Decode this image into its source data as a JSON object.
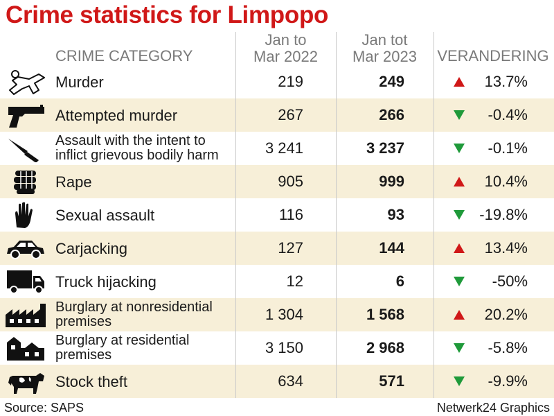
{
  "title": "Crime statistics for Limpopo",
  "chart_data": {
    "type": "table",
    "columns": {
      "category": "CRIME CATEGORY",
      "period1": [
        "Jan to",
        "Mar 2022"
      ],
      "period2": [
        "Jan tot",
        "Mar 2023"
      ],
      "change": "VERANDERING"
    },
    "rows": [
      {
        "icon": "body-outline-icon",
        "category": [
          "Murder"
        ],
        "v2022": "219",
        "v2023": "249",
        "change": "13.7%",
        "direction": "up"
      },
      {
        "icon": "pistol-icon",
        "category": [
          "Attempted murder"
        ],
        "v2022": "267",
        "v2023": "266",
        "change": "-0.4%",
        "direction": "down"
      },
      {
        "icon": "knife-icon",
        "category": [
          "Assault with the intent to",
          "inflict grievous bodily harm"
        ],
        "v2022": "3 241",
        "v2023": "3 237",
        "change": "-0.1%",
        "direction": "down"
      },
      {
        "icon": "fist-icon",
        "category": [
          "Rape"
        ],
        "v2022": "905",
        "v2023": "999",
        "change": "10.4%",
        "direction": "up"
      },
      {
        "icon": "hand-icon",
        "category": [
          "Sexual assault"
        ],
        "v2022": "116",
        "v2023": "93",
        "change": "-19.8%",
        "direction": "down"
      },
      {
        "icon": "car-icon",
        "category": [
          "Carjacking"
        ],
        "v2022": "127",
        "v2023": "144",
        "change": "13.4%",
        "direction": "up"
      },
      {
        "icon": "truck-icon",
        "category": [
          "Truck hijacking"
        ],
        "v2022": "12",
        "v2023": "6",
        "change": "-50%",
        "direction": "down"
      },
      {
        "icon": "factory-icon",
        "category": [
          "Burglary at nonresidential",
          "premises"
        ],
        "v2022": "1 304",
        "v2023": "1 568",
        "change": "20.2%",
        "direction": "up"
      },
      {
        "icon": "houses-icon",
        "category": [
          "Burglary at residential",
          "premises"
        ],
        "v2022": "3 150",
        "v2023": "2 968",
        "change": "-5.8%",
        "direction": "down"
      },
      {
        "icon": "cow-icon",
        "category": [
          "Stock theft"
        ],
        "v2022": "634",
        "v2023": "571",
        "change": "-9.9%",
        "direction": "down"
      }
    ]
  },
  "colors": {
    "title": "#d01818",
    "up": "#d01818",
    "down": "#1f9a3a",
    "shade": "#f7efd8"
  },
  "footer": {
    "source": "Source: SAPS",
    "credit": "Netwerk24 Graphics"
  }
}
